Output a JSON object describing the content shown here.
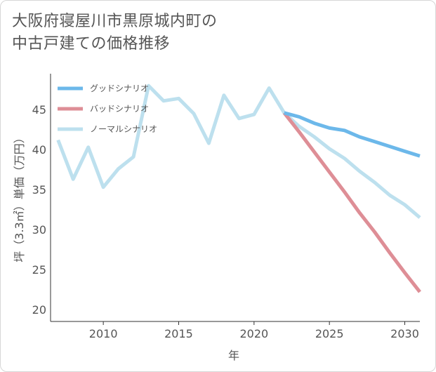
{
  "title_lines": [
    "大阪府寝屋川市黒原城内町の",
    "中古戸建ての価格推移"
  ],
  "chart_data": {
    "type": "line",
    "title": "大阪府寝屋川市黒原城内町の中古戸建ての価格推移",
    "xlabel": "年",
    "ylabel": "坪（3.3㎡）単価（万円）",
    "xlim": [
      2006.5,
      2031
    ],
    "ylim": [
      18.5,
      49.5
    ],
    "xticks": [
      2010,
      2015,
      2020,
      2025,
      2030
    ],
    "yticks": [
      20,
      25,
      30,
      35,
      40,
      45
    ],
    "grid": false,
    "legend_position": "top-left",
    "series": [
      {
        "name": "グッドシナリオ",
        "color": "#6cb8ea",
        "x": [
          2022,
          2023,
          2024,
          2025,
          2026,
          2027,
          2028,
          2029,
          2030,
          2031
        ],
        "values": [
          44.6,
          44.1,
          43.3,
          42.7,
          42.4,
          41.6,
          41.0,
          40.4,
          39.8,
          39.2
        ]
      },
      {
        "name": "バッドシナリオ",
        "color": "#de8e96",
        "x": [
          2022,
          2023,
          2024,
          2025,
          2026,
          2027,
          2028,
          2029,
          2030,
          2031
        ],
        "values": [
          44.6,
          42.2,
          39.7,
          37.2,
          34.7,
          32.1,
          29.7,
          27.1,
          24.6,
          22.2
        ]
      },
      {
        "name": "ノーマルシナリオ",
        "color": "#bde0ee",
        "x": [
          2007,
          2008,
          2009,
          2010,
          2011,
          2012,
          2013,
          2014,
          2015,
          2016,
          2017,
          2018,
          2019,
          2020,
          2021,
          2022,
          2023,
          2024,
          2025,
          2026,
          2027,
          2028,
          2029,
          2030,
          2031
        ],
        "values": [
          41.2,
          36.3,
          40.3,
          35.3,
          37.6,
          39.1,
          48.0,
          46.1,
          46.4,
          44.5,
          40.8,
          46.8,
          43.9,
          44.4,
          47.7,
          44.6,
          42.9,
          41.6,
          40.1,
          38.9,
          37.3,
          35.9,
          34.3,
          33.1,
          31.5
        ]
      }
    ]
  }
}
